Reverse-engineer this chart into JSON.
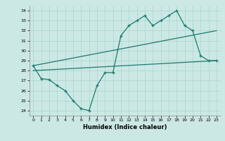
{
  "xlabel": "Humidex (Indice chaleur)",
  "ylabel": "",
  "xlim": [
    -0.5,
    23.5
  ],
  "ylim": [
    23.5,
    34.5
  ],
  "yticks": [
    24,
    25,
    26,
    27,
    28,
    29,
    30,
    31,
    32,
    33,
    34
  ],
  "xticks": [
    0,
    1,
    2,
    3,
    4,
    5,
    6,
    7,
    8,
    9,
    10,
    11,
    12,
    13,
    14,
    15,
    16,
    17,
    18,
    19,
    20,
    21,
    22,
    23
  ],
  "bg_color": "#cce8e4",
  "line_color": "#1a7a6e",
  "grid_color": "#aad4cf",
  "line1_x": [
    0,
    1,
    2,
    3,
    4,
    5,
    6,
    7,
    8,
    9,
    10,
    11,
    12,
    13,
    14,
    15,
    16,
    17,
    18,
    19,
    20,
    21,
    22,
    23
  ],
  "line1_y": [
    28.5,
    27.2,
    27.1,
    26.5,
    26.0,
    25.0,
    24.2,
    24.0,
    26.5,
    27.8,
    27.8,
    31.5,
    32.5,
    33.0,
    33.5,
    32.5,
    33.0,
    33.5,
    34.0,
    32.5,
    32.0,
    29.5,
    29.0,
    29.0
  ],
  "line2_x": [
    0,
    23
  ],
  "line2_y": [
    28.5,
    32.0
  ],
  "line3_x": [
    0,
    23
  ],
  "line3_y": [
    28.0,
    29.0
  ]
}
